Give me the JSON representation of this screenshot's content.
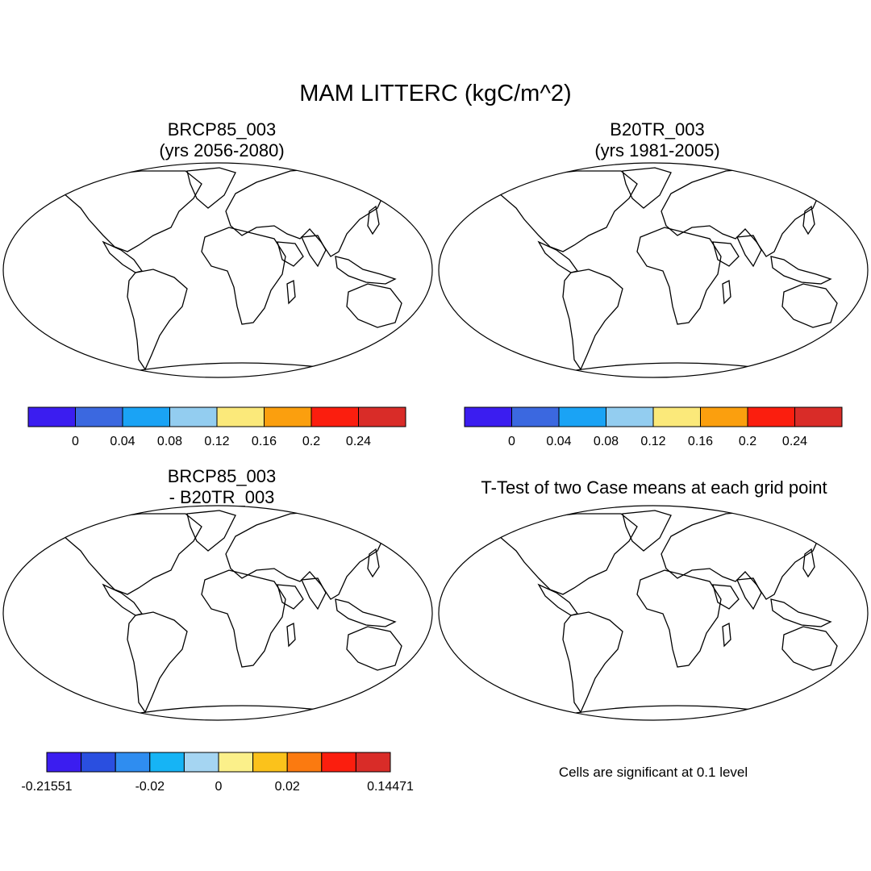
{
  "title": "MAM LITTERC (kgC/m^2)",
  "panels": [
    {
      "title_line1": "BRCP85_003",
      "title_line2": "(yrs 2056-2080)"
    },
    {
      "title_line1": "B20TR_003",
      "title_line2": "(yrs 1981-2005)"
    },
    {
      "title_line1": "BRCP85_003",
      "title_line2": "- B20TR_003"
    },
    {
      "title_line1": "T-Test of two Case means at each grid point",
      "title_line2": ""
    }
  ],
  "colorbar_abs": {
    "colors": [
      "#3b1df0",
      "#3b68e0",
      "#1aa3f5",
      "#93cdf0",
      "#fbe97a",
      "#fb9f0e",
      "#fb1e0e",
      "#d92c28"
    ],
    "labels": [
      "0",
      "0.04",
      "0.08",
      "0.12",
      "0.16",
      "0.2",
      "0.24"
    ]
  },
  "colorbar_diff": {
    "colors": [
      "#3b1df0",
      "#2a4fe0",
      "#2f8df0",
      "#16b4f5",
      "#a5d5f2",
      "#fbf08a",
      "#fbc21b",
      "#fb7a10",
      "#fb1e0e",
      "#d92c28"
    ],
    "labels": [
      "-0.21551",
      "-0.02",
      "0",
      "0.02",
      "0.14471"
    ]
  },
  "significance_note": "Cells are significant at 0.1 level",
  "colors": {
    "significant": "#f20c0c",
    "coast": "#000000",
    "antarctica_diff": "#fbf08a"
  }
}
